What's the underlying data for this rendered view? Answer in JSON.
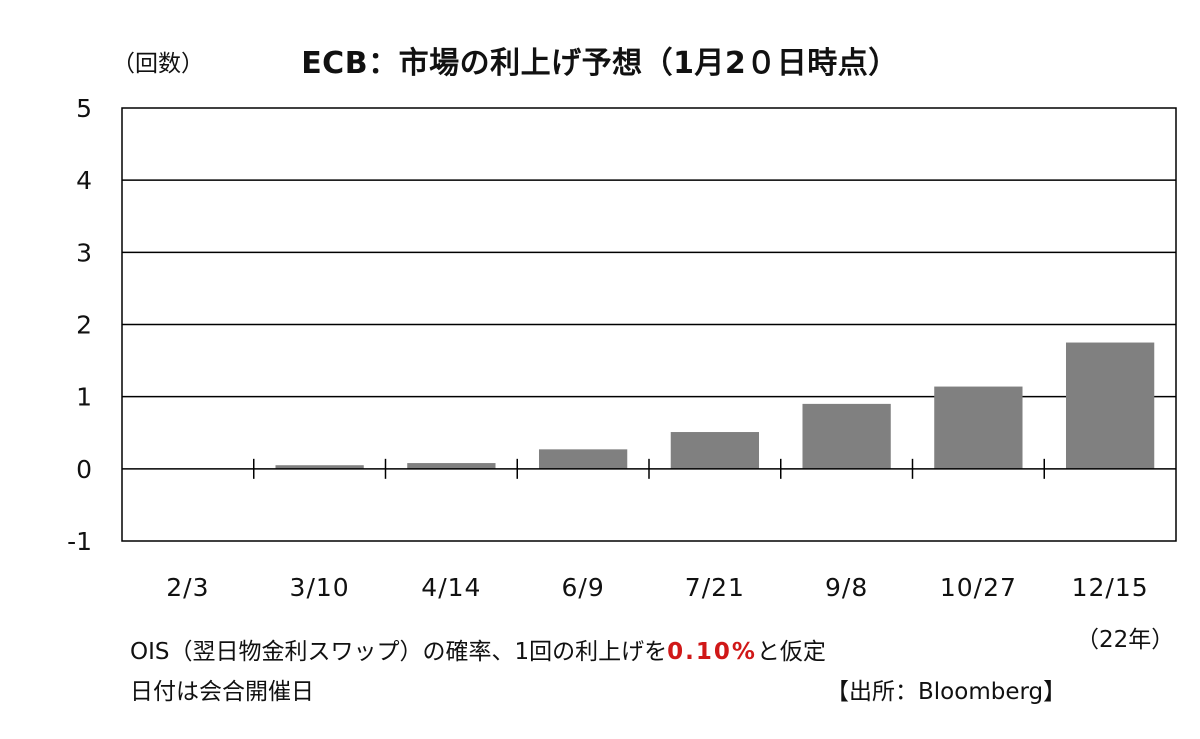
{
  "chart_data": {
    "type": "bar",
    "title": "ECB：市場の利上げ予想（1月2０日時点）",
    "ylabel": "（回数）",
    "categories": [
      "2/3",
      "3/10",
      "4/14",
      "6/9",
      "7/21",
      "9/8",
      "10/27",
      "12/15"
    ],
    "values": [
      0,
      0.05,
      0.08,
      0.27,
      0.51,
      0.9,
      1.14,
      1.75
    ],
    "ylim": [
      -1,
      5
    ],
    "yticks": [
      "5",
      "4",
      "3",
      "2",
      "1",
      "0",
      "-1"
    ],
    "x_year_note": "（22年）",
    "grid": true,
    "bar_color": "#808080"
  },
  "notes": {
    "line1_prefix": "OIS（翌日物金利スワップ）の確率、1回の利上げを",
    "line1_highlight": "0.10%",
    "line1_suffix": "と仮定",
    "line2": "日付は会合開催日",
    "source": "【出所：Bloomberg】"
  }
}
